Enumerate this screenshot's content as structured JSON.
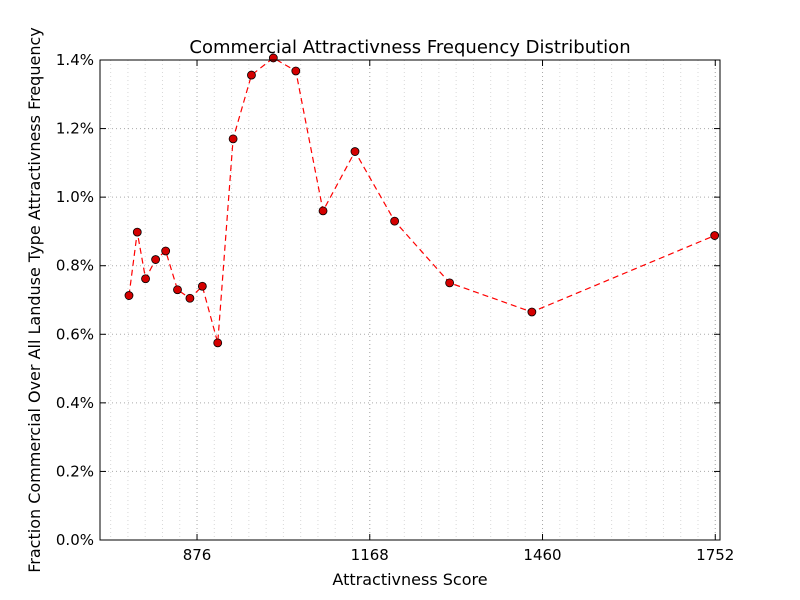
{
  "chart_data": {
    "type": "line",
    "title": "Commercial Attractivness Frequency Distribution",
    "xlabel": "Attractivness Score",
    "ylabel": "Fraction Commercial Over All Landuse Type Attractivness Frequency",
    "xlim": [
      712,
      1760
    ],
    "ylim": [
      0,
      0.014
    ],
    "x_ticks": [
      876,
      1168,
      1460,
      1752
    ],
    "x_tick_labels": [
      "876",
      "1168",
      "1460",
      "1752"
    ],
    "y_ticks": [
      0,
      0.002,
      0.004,
      0.006,
      0.008,
      0.01,
      0.012,
      0.014
    ],
    "y_tick_labels": [
      "0.0%",
      "0.2%",
      "0.4%",
      "0.6%",
      "0.8%",
      "1.0%",
      "1.2%",
      "1.4%"
    ],
    "grid": true,
    "series": [
      {
        "line_color": "#ff0000",
        "marker_color": "#d40000",
        "line_style": "dashed",
        "x": [
          761,
          775,
          789,
          806,
          823,
          843,
          864,
          885,
          911,
          937,
          968,
          1005,
          1043,
          1089,
          1143,
          1210,
          1303,
          1442,
          1751
        ],
        "y": [
          0.00713,
          0.00898,
          0.00762,
          0.00818,
          0.00843,
          0.0073,
          0.00705,
          0.0074,
          0.00575,
          0.0117,
          0.01356,
          0.01406,
          0.01368,
          0.0096,
          0.01133,
          0.0093,
          0.0075,
          0.00665,
          0.00888
        ]
      }
    ]
  }
}
